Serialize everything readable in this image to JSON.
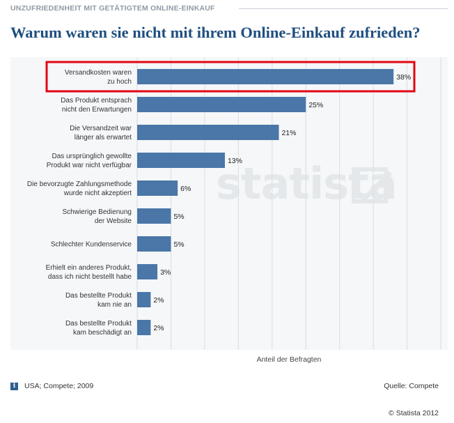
{
  "header": {
    "kicker": "UNZUFRIEDENHEIT MIT GETÄTIGTEM ONLINE-EINKAUF",
    "title": "Warum waren sie nicht mit ihrem Online-Einkauf zufrieden?"
  },
  "footer": {
    "info_icon_glyph": "i",
    "source_note": "USA; Compete; 2009",
    "source": "Quelle: Compete",
    "copyright": "© Statista 2012"
  },
  "watermark": "statista",
  "colors": {
    "bar": "#4a76a8",
    "highlight": "#e30613",
    "title": "#1f4f7f"
  },
  "chart_data": {
    "type": "bar",
    "orientation": "horizontal",
    "categories": [
      [
        "Versandkosten waren",
        "zu hoch"
      ],
      [
        "Das Produkt entsprach",
        "nicht den Erwartungen"
      ],
      [
        "Die Versandzeit war",
        "länger als erwartet"
      ],
      [
        "Das ursprünglich gewollte",
        "Produkt war nicht verfügbar"
      ],
      [
        "Die bevorzugte Zahlungsmethode",
        "wurde nicht akzeptiert"
      ],
      [
        "Schwierige Bedienung",
        "der Website"
      ],
      [
        "Schlechter Kundenservice"
      ],
      [
        "Erhielt ein anderes Produkt,",
        "dass ich nicht bestellt habe"
      ],
      [
        "Das bestellte Produkt",
        "kam nie an"
      ],
      [
        "Das bestellte Produkt",
        "kam beschädigt an"
      ]
    ],
    "values": [
      38,
      25,
      21,
      13,
      6,
      5,
      5,
      3,
      2,
      2
    ],
    "value_labels": [
      "38%",
      "25%",
      "21%",
      "13%",
      "6%",
      "5%",
      "5%",
      "3%",
      "2%",
      "2%"
    ],
    "highlighted_index": 0,
    "xlabel": "Anteil der Befragten",
    "xlim": [
      0,
      45
    ],
    "grid": true
  }
}
